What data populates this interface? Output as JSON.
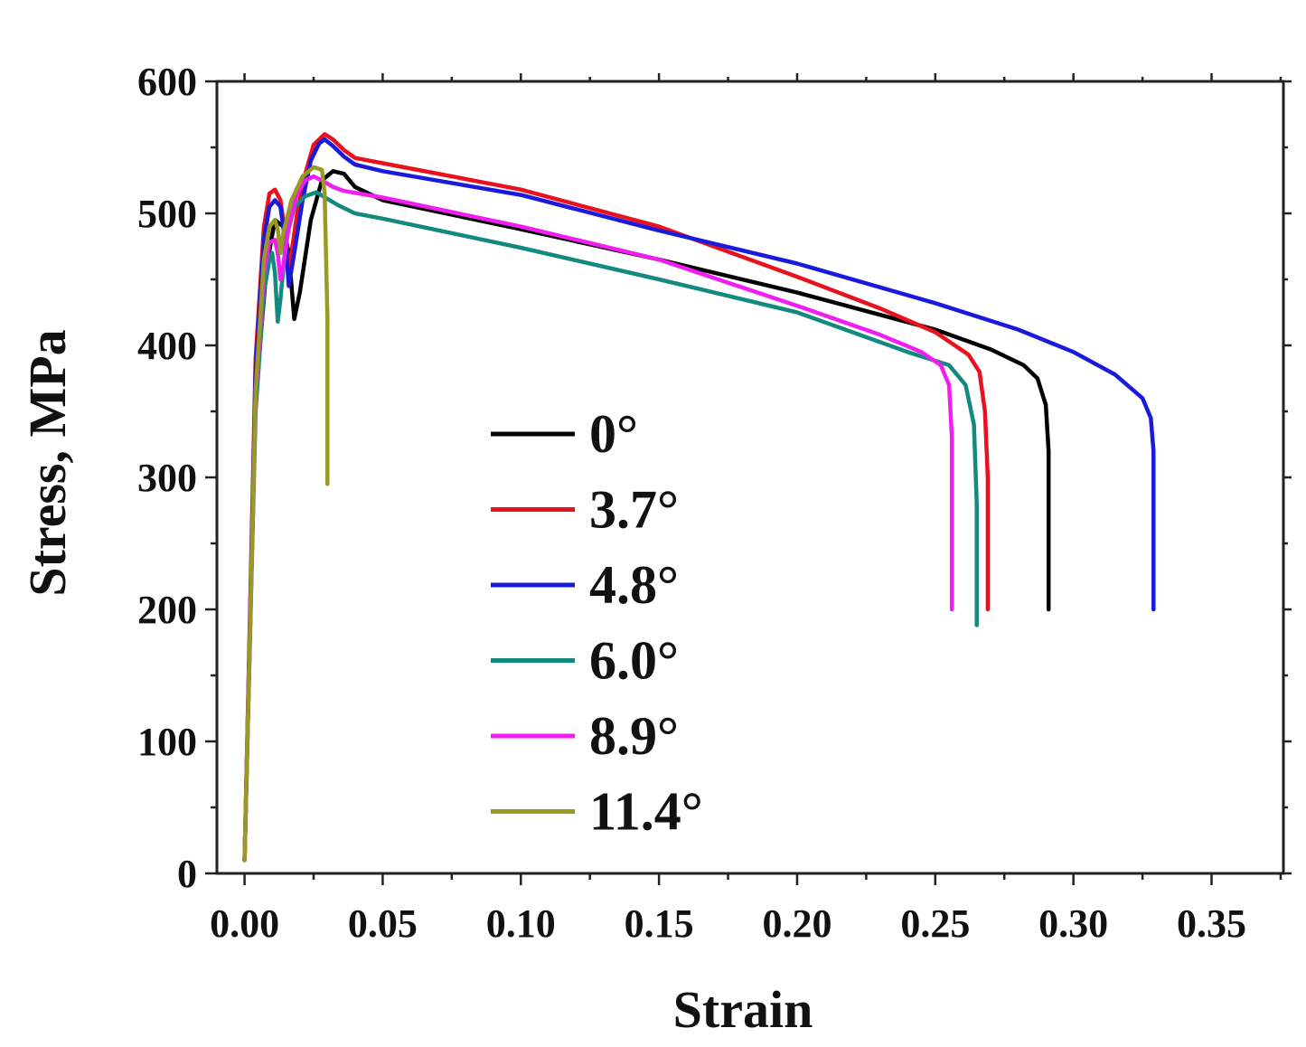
{
  "chart_data": {
    "type": "line",
    "title": "",
    "xlabel": "Strain",
    "ylabel": "Stress, MPa",
    "xlim": [
      -0.01,
      0.376
    ],
    "ylim": [
      0,
      600
    ],
    "xticks": [
      0.0,
      0.05,
      0.1,
      0.15,
      0.2,
      0.25,
      0.3,
      0.35
    ],
    "xtick_labels": [
      "0.00",
      "0.05",
      "0.10",
      "0.15",
      "0.20",
      "0.25",
      "0.30",
      "0.35"
    ],
    "yticks": [
      0,
      100,
      200,
      300,
      400,
      500,
      600
    ],
    "ytick_labels": [
      "0",
      "100",
      "200",
      "300",
      "400",
      "500",
      "600"
    ],
    "grid": false,
    "legend_position": "center-left",
    "series": [
      {
        "name": "0°",
        "color": "#000000",
        "points": [
          [
            0,
            10
          ],
          [
            0.004,
            360
          ],
          [
            0.008,
            460
          ],
          [
            0.011,
            495
          ],
          [
            0.014,
            490
          ],
          [
            0.016,
            470
          ],
          [
            0.018,
            420
          ],
          [
            0.02,
            440
          ],
          [
            0.024,
            495
          ],
          [
            0.028,
            525
          ],
          [
            0.032,
            532
          ],
          [
            0.036,
            530
          ],
          [
            0.04,
            520
          ],
          [
            0.05,
            510
          ],
          [
            0.1,
            488
          ],
          [
            0.15,
            465
          ],
          [
            0.2,
            440
          ],
          [
            0.25,
            412
          ],
          [
            0.27,
            397
          ],
          [
            0.282,
            385
          ],
          [
            0.287,
            375
          ],
          [
            0.29,
            355
          ],
          [
            0.291,
            320
          ],
          [
            0.291,
            200
          ]
        ]
      },
      {
        "name": "3.7°",
        "color": "#e8121e",
        "points": [
          [
            0,
            10
          ],
          [
            0.004,
            390
          ],
          [
            0.007,
            490
          ],
          [
            0.009,
            515
          ],
          [
            0.011,
            518
          ],
          [
            0.013,
            510
          ],
          [
            0.015,
            480
          ],
          [
            0.016,
            455
          ],
          [
            0.017,
            470
          ],
          [
            0.019,
            500
          ],
          [
            0.022,
            530
          ],
          [
            0.025,
            552
          ],
          [
            0.029,
            560
          ],
          [
            0.032,
            556
          ],
          [
            0.036,
            548
          ],
          [
            0.04,
            542
          ],
          [
            0.05,
            538
          ],
          [
            0.1,
            518
          ],
          [
            0.15,
            490
          ],
          [
            0.2,
            452
          ],
          [
            0.23,
            428
          ],
          [
            0.25,
            410
          ],
          [
            0.262,
            393
          ],
          [
            0.266,
            380
          ],
          [
            0.268,
            350
          ],
          [
            0.269,
            300
          ],
          [
            0.269,
            200
          ]
        ]
      },
      {
        "name": "4.8°",
        "color": "#1a1adc",
        "points": [
          [
            0,
            10
          ],
          [
            0.004,
            380
          ],
          [
            0.007,
            480
          ],
          [
            0.009,
            505
          ],
          [
            0.011,
            510
          ],
          [
            0.013,
            505
          ],
          [
            0.015,
            475
          ],
          [
            0.016,
            445
          ],
          [
            0.018,
            470
          ],
          [
            0.021,
            510
          ],
          [
            0.024,
            540
          ],
          [
            0.027,
            553
          ],
          [
            0.029,
            556
          ],
          [
            0.032,
            551
          ],
          [
            0.036,
            543
          ],
          [
            0.04,
            537
          ],
          [
            0.05,
            532
          ],
          [
            0.1,
            514
          ],
          [
            0.15,
            487
          ],
          [
            0.2,
            462
          ],
          [
            0.25,
            432
          ],
          [
            0.28,
            412
          ],
          [
            0.3,
            395
          ],
          [
            0.315,
            378
          ],
          [
            0.325,
            360
          ],
          [
            0.328,
            345
          ],
          [
            0.329,
            320
          ],
          [
            0.329,
            200
          ]
        ]
      },
      {
        "name": "6.0°",
        "color": "#138a80",
        "points": [
          [
            0,
            10
          ],
          [
            0.004,
            350
          ],
          [
            0.007,
            440
          ],
          [
            0.009,
            465
          ],
          [
            0.01,
            470
          ],
          [
            0.011,
            455
          ],
          [
            0.012,
            418
          ],
          [
            0.013,
            435
          ],
          [
            0.015,
            480
          ],
          [
            0.018,
            505
          ],
          [
            0.022,
            513
          ],
          [
            0.026,
            516
          ],
          [
            0.03,
            511
          ],
          [
            0.034,
            506
          ],
          [
            0.04,
            500
          ],
          [
            0.05,
            496
          ],
          [
            0.1,
            474
          ],
          [
            0.15,
            450
          ],
          [
            0.2,
            425
          ],
          [
            0.24,
            395
          ],
          [
            0.255,
            385
          ],
          [
            0.261,
            370
          ],
          [
            0.264,
            340
          ],
          [
            0.265,
            280
          ],
          [
            0.265,
            188
          ]
        ]
      },
      {
        "name": "8.9°",
        "color": "#f01ef0",
        "points": [
          [
            0,
            10
          ],
          [
            0.004,
            360
          ],
          [
            0.007,
            455
          ],
          [
            0.009,
            478
          ],
          [
            0.011,
            480
          ],
          [
            0.012,
            470
          ],
          [
            0.013,
            450
          ],
          [
            0.014,
            460
          ],
          [
            0.016,
            490
          ],
          [
            0.019,
            515
          ],
          [
            0.022,
            525
          ],
          [
            0.025,
            528
          ],
          [
            0.028,
            525
          ],
          [
            0.032,
            520
          ],
          [
            0.036,
            517
          ],
          [
            0.05,
            512
          ],
          [
            0.1,
            490
          ],
          [
            0.15,
            465
          ],
          [
            0.2,
            430
          ],
          [
            0.23,
            408
          ],
          [
            0.245,
            395
          ],
          [
            0.252,
            385
          ],
          [
            0.255,
            370
          ],
          [
            0.256,
            330
          ],
          [
            0.256,
            200
          ]
        ]
      },
      {
        "name": "11.4°",
        "color": "#9a9a22",
        "points": [
          [
            0,
            10
          ],
          [
            0.004,
            365
          ],
          [
            0.007,
            465
          ],
          [
            0.009,
            490
          ],
          [
            0.011,
            495
          ],
          [
            0.012,
            488
          ],
          [
            0.013,
            470
          ],
          [
            0.014,
            485
          ],
          [
            0.017,
            510
          ],
          [
            0.021,
            528
          ],
          [
            0.025,
            535
          ],
          [
            0.028,
            533
          ],
          [
            0.029,
            515
          ],
          [
            0.03,
            420
          ],
          [
            0.03,
            295
          ]
        ]
      }
    ]
  }
}
